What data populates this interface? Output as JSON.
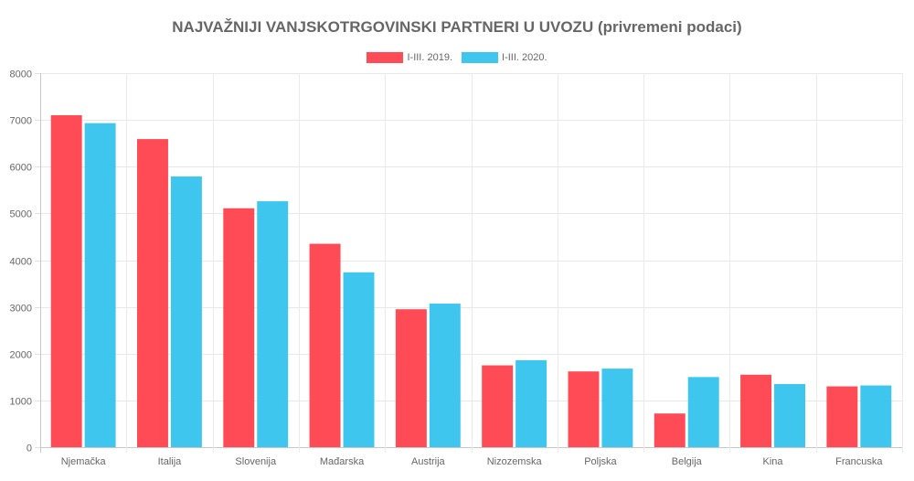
{
  "chart_data": {
    "type": "bar",
    "title": "NAJVAŽNIJI VANJSKOTRGOVINSKI PARTNERI U UVOZU (privremeni podaci)",
    "categories": [
      "Njemačka",
      "Italija",
      "Slovenija",
      "Mađarska",
      "Austrija",
      "Nizozemska",
      "Poljska",
      "Belgija",
      "Kina",
      "Francuska"
    ],
    "series": [
      {
        "name": "I-III. 2019.",
        "color": "#ff4b55",
        "values": [
          7100,
          6590,
          5110,
          4350,
          2950,
          1750,
          1620,
          720,
          1550,
          1300
        ]
      },
      {
        "name": "I-III. 2020.",
        "color": "#3fc6ef",
        "values": [
          6930,
          5790,
          5260,
          3740,
          3070,
          1860,
          1680,
          1500,
          1350,
          1320
        ]
      }
    ],
    "ylim": [
      0,
      8000
    ],
    "yticks": [
      0,
      1000,
      2000,
      3000,
      4000,
      5000,
      6000,
      7000,
      8000
    ],
    "grid": true,
    "legend_position": "top-center"
  }
}
